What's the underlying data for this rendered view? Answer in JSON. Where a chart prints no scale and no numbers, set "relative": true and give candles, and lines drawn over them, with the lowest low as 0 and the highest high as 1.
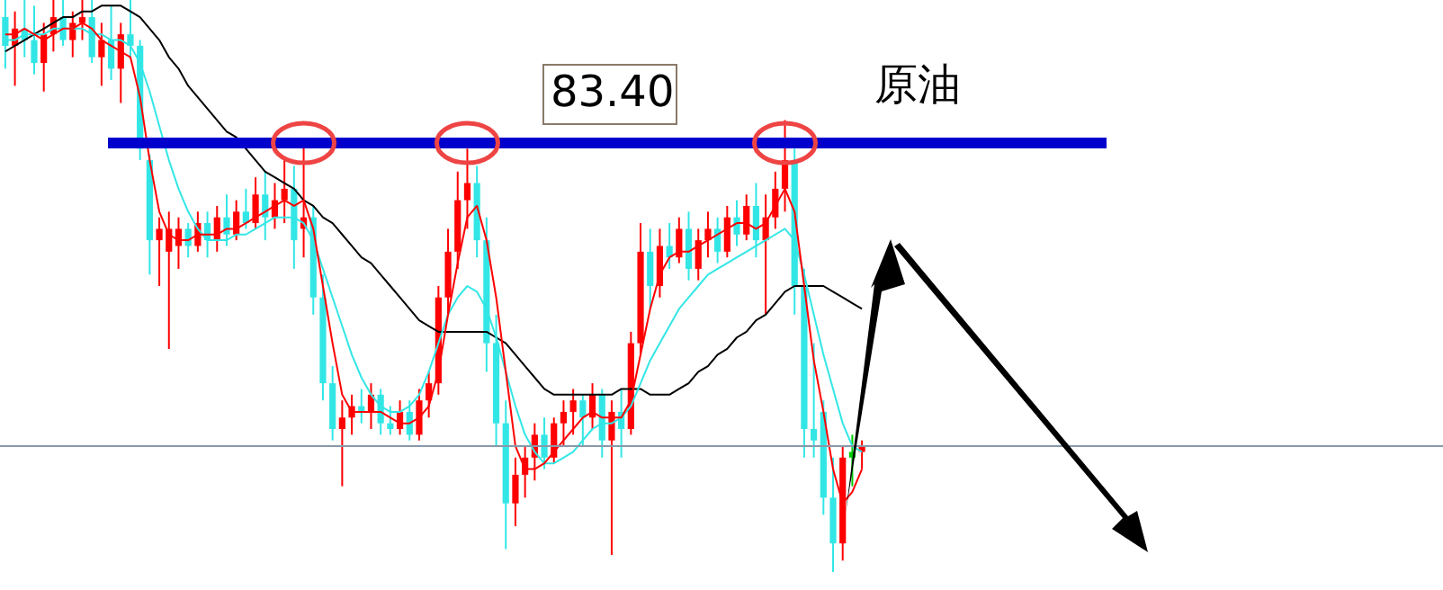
{
  "chart_data": {
    "type": "candlestick",
    "relative": true,
    "categories": [
      null,
      null,
      null,
      null,
      null,
      null,
      null,
      null,
      null,
      null,
      null,
      null,
      null,
      null,
      null,
      null,
      null,
      null,
      null,
      null,
      null,
      null,
      null,
      null,
      null,
      null,
      null,
      null,
      null,
      null,
      null,
      null,
      null,
      null,
      null,
      null,
      null,
      null,
      null,
      null,
      null,
      null,
      null,
      null,
      null,
      null,
      null,
      null,
      null,
      null,
      null,
      null,
      null,
      null,
      null,
      null,
      null,
      null,
      null,
      null,
      null,
      null,
      null,
      null,
      null,
      null,
      null,
      null,
      null,
      null,
      null,
      null,
      null,
      null,
      null,
      null,
      null,
      null,
      null,
      null,
      null,
      null,
      null,
      null,
      null,
      null,
      null,
      null,
      null,
      null
    ],
    "ohlc": [
      [
        0.97,
        1,
        0.88,
        0.92
      ],
      [
        0.92,
        0.98,
        0.85,
        0.95
      ],
      [
        0.95,
        1,
        0.9,
        0.93
      ],
      [
        0.93,
        0.99,
        0.87,
        0.89
      ],
      [
        0.89,
        0.96,
        0.84,
        0.94
      ],
      [
        0.94,
        1,
        0.91,
        0.97
      ],
      [
        0.97,
        1,
        0.92,
        0.93
      ],
      [
        0.93,
        0.98,
        0.9,
        0.96
      ],
      [
        0.96,
        1,
        0.93,
        0.97
      ],
      [
        0.97,
        1,
        0.89,
        0.9
      ],
      [
        0.9,
        0.96,
        0.85,
        0.93
      ],
      [
        0.93,
        0.99,
        0.86,
        0.88
      ],
      [
        0.88,
        0.96,
        0.82,
        0.94
      ],
      [
        0.94,
        1,
        0.9,
        0.92
      ],
      [
        0.92,
        0.93,
        0.72,
        0.74
      ],
      [
        0.72,
        0.73,
        0.52,
        0.58
      ],
      [
        0.58,
        0.62,
        0.5,
        0.6
      ],
      [
        0.56,
        0.63,
        0.39,
        0.6
      ],
      [
        0.57,
        0.62,
        0.53,
        0.6
      ],
      [
        0.6,
        0.61,
        0.55,
        0.57
      ],
      [
        0.57,
        0.63,
        0.56,
        0.61
      ],
      [
        0.61,
        0.63,
        0.55,
        0.58
      ],
      [
        0.58,
        0.64,
        0.56,
        0.62
      ],
      [
        0.62,
        0.66,
        0.57,
        0.59
      ],
      [
        0.59,
        0.65,
        0.58,
        0.63
      ],
      [
        0.63,
        0.67,
        0.6,
        0.61
      ],
      [
        0.61,
        0.69,
        0.6,
        0.66
      ],
      [
        0.66,
        0.7,
        0.58,
        0.62
      ],
      [
        0.62,
        0.68,
        0.6,
        0.65
      ],
      [
        0.65,
        0.72,
        0.61,
        0.67
      ],
      [
        0.67,
        0.71,
        0.53,
        0.58
      ],
      [
        0.6,
        0.75,
        0.55,
        0.62
      ],
      [
        0.62,
        0.64,
        0.45,
        0.48
      ],
      [
        0.48,
        0.52,
        0.3,
        0.33
      ],
      [
        0.33,
        0.36,
        0.23,
        0.25
      ],
      [
        0.25,
        0.3,
        0.15,
        0.27
      ],
      [
        0.27,
        0.31,
        0.24,
        0.29
      ],
      [
        0.29,
        0.32,
        0.26,
        0.28
      ],
      [
        0.28,
        0.33,
        0.25,
        0.31
      ],
      [
        0.31,
        0.32,
        0.24,
        0.26
      ],
      [
        0.26,
        0.29,
        0.24,
        0.25
      ],
      [
        0.25,
        0.3,
        0.24,
        0.28
      ],
      [
        0.28,
        0.3,
        0.23,
        0.24
      ],
      [
        0.24,
        0.32,
        0.23,
        0.3
      ],
      [
        0.3,
        0.35,
        0.27,
        0.33
      ],
      [
        0.33,
        0.5,
        0.31,
        0.48
      ],
      [
        0.48,
        0.6,
        0.45,
        0.56
      ],
      [
        0.56,
        0.7,
        0.53,
        0.65
      ],
      [
        0.65,
        0.74,
        0.6,
        0.68
      ],
      [
        0.68,
        0.71,
        0.55,
        0.58
      ],
      [
        0.58,
        0.62,
        0.35,
        0.4
      ],
      [
        0.4,
        0.45,
        0.22,
        0.26
      ],
      [
        0.26,
        0.3,
        0.04,
        0.12
      ],
      [
        0.12,
        0.2,
        0.08,
        0.17
      ],
      [
        0.17,
        0.22,
        0.13,
        0.2
      ],
      [
        0.2,
        0.26,
        0.16,
        0.24
      ],
      [
        0.24,
        0.27,
        0.18,
        0.2
      ],
      [
        0.2,
        0.27,
        0.19,
        0.26
      ],
      [
        0.26,
        0.3,
        0.22,
        0.28
      ],
      [
        0.28,
        0.32,
        0.24,
        0.3
      ],
      [
        0.3,
        0.31,
        0.22,
        0.27
      ],
      [
        0.27,
        0.33,
        0.25,
        0.31
      ],
      [
        0.31,
        0.32,
        0.2,
        0.23
      ],
      [
        0.23,
        0.3,
        0.03,
        0.28
      ],
      [
        0.28,
        0.32,
        0.2,
        0.25
      ],
      [
        0.25,
        0.42,
        0.24,
        0.4
      ],
      [
        0.4,
        0.61,
        0.38,
        0.56
      ],
      [
        0.56,
        0.6,
        0.46,
        0.5
      ],
      [
        0.5,
        0.6,
        0.48,
        0.57
      ],
      [
        0.57,
        0.61,
        0.53,
        0.55
      ],
      [
        0.55,
        0.62,
        0.54,
        0.6
      ],
      [
        0.6,
        0.63,
        0.51,
        0.53
      ],
      [
        0.53,
        0.6,
        0.51,
        0.58
      ],
      [
        0.58,
        0.63,
        0.55,
        0.6
      ],
      [
        0.6,
        0.62,
        0.54,
        0.56
      ],
      [
        0.56,
        0.64,
        0.55,
        0.62
      ],
      [
        0.62,
        0.65,
        0.57,
        0.59
      ],
      [
        0.59,
        0.66,
        0.58,
        0.64
      ],
      [
        0.64,
        0.68,
        0.55,
        0.58
      ],
      [
        0.58,
        0.66,
        0.45,
        0.62
      ],
      [
        0.62,
        0.7,
        0.6,
        0.67
      ],
      [
        0.67,
        0.79,
        0.63,
        0.72
      ],
      [
        0.72,
        0.74,
        0.45,
        0.5
      ],
      [
        0.5,
        0.53,
        0.2,
        0.25
      ],
      [
        0.25,
        0.4,
        0.2,
        0.23
      ],
      [
        0.28,
        0.3,
        0.1,
        0.13
      ],
      [
        0.13,
        0.2,
        0,
        0.05
      ],
      [
        0.05,
        0.22,
        0.02,
        0.2
      ],
      [
        0.2,
        0.24,
        0.15,
        0.21
      ],
      [
        0.21,
        0.23,
        0.18,
        0.22
      ]
    ],
    "colors": [
      "#33e6e6",
      "#ff0000",
      "#33e6e6",
      "#33e6e6",
      "#ff0000",
      "#ff0000",
      "#33e6e6",
      "#ff0000",
      "#ff0000",
      "#33e6e6",
      "#ff0000",
      "#33e6e6",
      "#ff0000",
      "#33e6e6",
      "#33e6e6",
      "#33e6e6",
      "#ff0000",
      "#ff0000",
      "#ff0000",
      "#33e6e6",
      "#ff0000",
      "#33e6e6",
      "#ff0000",
      "#33e6e6",
      "#ff0000",
      "#33e6e6",
      "#ff0000",
      "#33e6e6",
      "#ff0000",
      "#ff0000",
      "#33e6e6",
      "#ff0000",
      "#33e6e6",
      "#33e6e6",
      "#33e6e6",
      "#ff0000",
      "#ff0000",
      "#33e6e6",
      "#ff0000",
      "#33e6e6",
      "#33e6e6",
      "#ff0000",
      "#33e6e6",
      "#ff0000",
      "#ff0000",
      "#ff0000",
      "#ff0000",
      "#ff0000",
      "#ff0000",
      "#33e6e6",
      "#33e6e6",
      "#33e6e6",
      "#33e6e6",
      "#ff0000",
      "#ff0000",
      "#ff0000",
      "#33e6e6",
      "#ff0000",
      "#ff0000",
      "#ff0000",
      "#33e6e6",
      "#ff0000",
      "#33e6e6",
      "#ff0000",
      "#33e6e6",
      "#ff0000",
      "#ff0000",
      "#33e6e6",
      "#ff0000",
      "#33e6e6",
      "#ff0000",
      "#33e6e6",
      "#ff0000",
      "#ff0000",
      "#33e6e6",
      "#ff0000",
      "#33e6e6",
      "#ff0000",
      "#33e6e6",
      "#ff0000",
      "#ff0000",
      "#ff0000",
      "#33e6e6",
      "#33e6e6",
      "#33e6e6",
      "#33e6e6",
      "#33e6e6",
      "#ff0000",
      "#00cc00",
      "#ff0000"
    ],
    "series": [
      {
        "type": "line",
        "color": "#000000",
        "values": [
          0.91,
          0.92,
          0.93,
          0.94,
          0.95,
          0.96,
          0.97,
          0.97,
          0.98,
          0.98,
          0.99,
          0.99,
          0.99,
          0.98,
          0.97,
          0.95,
          0.93,
          0.9,
          0.88,
          0.85,
          0.83,
          0.81,
          0.79,
          0.77,
          0.76,
          0.74,
          0.72,
          0.7,
          0.69,
          0.68,
          0.67,
          0.65,
          0.64,
          0.62,
          0.61,
          0.59,
          0.57,
          0.55,
          0.54,
          0.52,
          0.5,
          0.48,
          0.46,
          0.44,
          0.43,
          0.42,
          0.42,
          0.42,
          0.42,
          0.42,
          0.42,
          0.41,
          0.4,
          0.38,
          0.36,
          0.34,
          0.32,
          0.31,
          0.31,
          0.31,
          0.31,
          0.31,
          0.31,
          0.31,
          0.32,
          0.32,
          0.32,
          0.31,
          0.31,
          0.31,
          0.32,
          0.33,
          0.35,
          0.36,
          0.38,
          0.39,
          0.41,
          0.42,
          0.44,
          0.45,
          0.47,
          0.49,
          0.5,
          0.5,
          0.5,
          0.5,
          0.49,
          0.48,
          0.47,
          0.46
        ]
      },
      {
        "type": "line",
        "color": "#33e6e6",
        "values": [
          0.93,
          0.93,
          0.94,
          0.94,
          0.94,
          0.95,
          0.95,
          0.95,
          0.95,
          0.94,
          0.94,
          0.93,
          0.93,
          0.92,
          0.89,
          0.84,
          0.78,
          0.72,
          0.67,
          0.63,
          0.6,
          0.58,
          0.58,
          0.58,
          0.59,
          0.59,
          0.6,
          0.61,
          0.62,
          0.62,
          0.62,
          0.61,
          0.58,
          0.53,
          0.48,
          0.43,
          0.38,
          0.34,
          0.31,
          0.29,
          0.28,
          0.28,
          0.29,
          0.31,
          0.35,
          0.4,
          0.45,
          0.48,
          0.5,
          0.49,
          0.46,
          0.41,
          0.35,
          0.29,
          0.24,
          0.21,
          0.19,
          0.19,
          0.2,
          0.21,
          0.23,
          0.25,
          0.26,
          0.26,
          0.27,
          0.29,
          0.33,
          0.37,
          0.4,
          0.43,
          0.46,
          0.48,
          0.5,
          0.52,
          0.53,
          0.54,
          0.55,
          0.56,
          0.57,
          0.58,
          0.59,
          0.6,
          0.58,
          0.52,
          0.45,
          0.38,
          0.32,
          0.26,
          0.22,
          0.21
        ]
      },
      {
        "type": "line",
        "color": "#ff0000",
        "values": [
          0.94,
          0.94,
          0.95,
          0.94,
          0.93,
          0.94,
          0.95,
          0.95,
          0.96,
          0.95,
          0.93,
          0.92,
          0.91,
          0.9,
          0.83,
          0.72,
          0.63,
          0.59,
          0.58,
          0.58,
          0.59,
          0.59,
          0.59,
          0.6,
          0.6,
          0.61,
          0.62,
          0.63,
          0.64,
          0.65,
          0.64,
          0.65,
          0.6,
          0.5,
          0.4,
          0.31,
          0.28,
          0.28,
          0.28,
          0.28,
          0.27,
          0.26,
          0.26,
          0.27,
          0.29,
          0.35,
          0.45,
          0.54,
          0.62,
          0.64,
          0.58,
          0.48,
          0.35,
          0.22,
          0.18,
          0.18,
          0.19,
          0.21,
          0.23,
          0.25,
          0.27,
          0.28,
          0.27,
          0.27,
          0.27,
          0.3,
          0.38,
          0.46,
          0.52,
          0.55,
          0.56,
          0.56,
          0.57,
          0.58,
          0.59,
          0.6,
          0.61,
          0.61,
          0.6,
          0.61,
          0.64,
          0.67,
          0.63,
          0.5,
          0.37,
          0.28,
          0.18,
          0.12,
          0.14,
          0.18
        ]
      }
    ],
    "ref_lines": [
      {
        "axis": "y",
        "value": 0.75,
        "color": "#0000cc"
      },
      {
        "axis": "y",
        "value": 0.22,
        "color": "#8899aa"
      }
    ],
    "annotations": [
      "83.40",
      "原油"
    ]
  }
}
